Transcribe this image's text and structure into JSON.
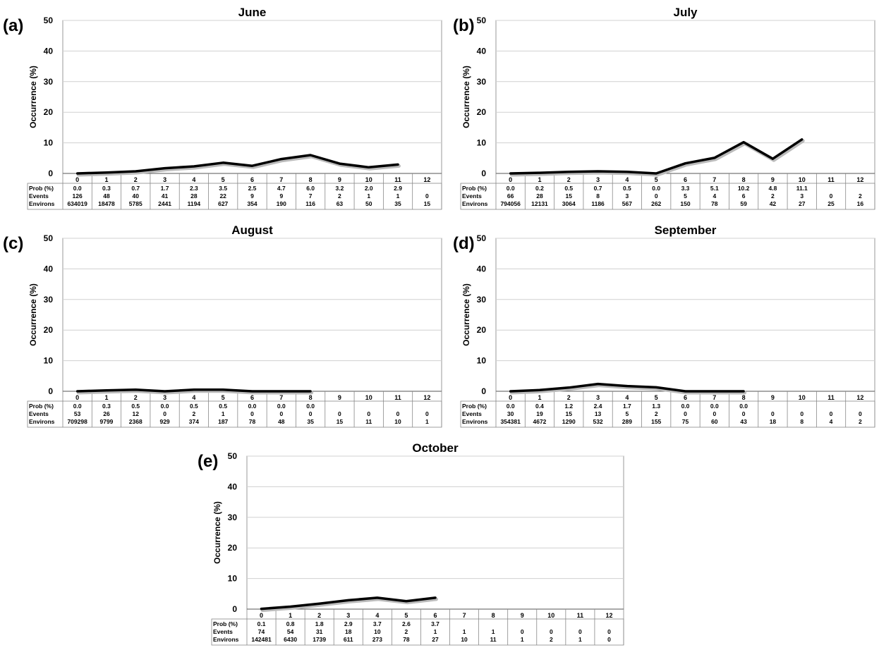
{
  "figure": {
    "y_axis_label": "Occurrence (%)",
    "row_labels": [
      "Prob (%)",
      "Events",
      "Environs"
    ]
  },
  "chart_data": [
    {
      "type": "line",
      "panel_label": "(a)",
      "title": "June",
      "ylabel": "Occurrence (%)",
      "ylim": [
        0,
        50
      ],
      "yticks": [
        0,
        10,
        20,
        30,
        40,
        50
      ],
      "grid": true,
      "categories": [
        "0",
        "1",
        "2",
        "3",
        "4",
        "5",
        "6",
        "7",
        "8",
        "9",
        "10",
        "11",
        "12"
      ],
      "series": [
        {
          "values": [
            0.0,
            0.3,
            0.7,
            1.7,
            2.3,
            3.5,
            2.5,
            4.7,
            6.0,
            3.2,
            2.0,
            2.9,
            null
          ]
        }
      ],
      "table": {
        "prob": [
          "0.0",
          "0.3",
          "0.7",
          "1.7",
          "2.3",
          "3.5",
          "2.5",
          "4.7",
          "6.0",
          "3.2",
          "2.0",
          "2.9",
          ""
        ],
        "events": [
          "126",
          "48",
          "40",
          "41",
          "28",
          "22",
          "9",
          "9",
          "7",
          "2",
          "1",
          "1",
          "0"
        ],
        "environs": [
          "634019",
          "18478",
          "5785",
          "2441",
          "1194",
          "627",
          "354",
          "190",
          "116",
          "63",
          "50",
          "35",
          "15"
        ]
      }
    },
    {
      "type": "line",
      "panel_label": "(b)",
      "title": "July",
      "ylabel": "Occurrence (%)",
      "ylim": [
        0,
        50
      ],
      "yticks": [
        0,
        10,
        20,
        30,
        40,
        50
      ],
      "grid": true,
      "categories": [
        "0",
        "1",
        "2",
        "3",
        "4",
        "5",
        "6",
        "7",
        "8",
        "9",
        "10",
        "11",
        "12"
      ],
      "series": [
        {
          "values": [
            0.0,
            0.2,
            0.5,
            0.7,
            0.5,
            0.0,
            3.3,
            5.1,
            10.2,
            4.8,
            11.1,
            null,
            null
          ]
        }
      ],
      "table": {
        "prob": [
          "0.0",
          "0.2",
          "0.5",
          "0.7",
          "0.5",
          "0.0",
          "3.3",
          "5.1",
          "10.2",
          "4.8",
          "11.1",
          "",
          ""
        ],
        "events": [
          "66",
          "28",
          "15",
          "8",
          "3",
          "0",
          "5",
          "4",
          "6",
          "2",
          "3",
          "0",
          "2"
        ],
        "environs": [
          "794056",
          "12131",
          "3064",
          "1186",
          "567",
          "262",
          "150",
          "78",
          "59",
          "42",
          "27",
          "25",
          "16"
        ]
      }
    },
    {
      "type": "line",
      "panel_label": "(c)",
      "title": "August",
      "ylabel": "Occurrence (%)",
      "ylim": [
        0,
        50
      ],
      "yticks": [
        0,
        10,
        20,
        30,
        40,
        50
      ],
      "grid": true,
      "categories": [
        "0",
        "1",
        "2",
        "3",
        "4",
        "5",
        "6",
        "7",
        "8",
        "9",
        "10",
        "11",
        "12"
      ],
      "series": [
        {
          "values": [
            0.0,
            0.3,
            0.5,
            0.0,
            0.5,
            0.5,
            0.0,
            0.0,
            0.0,
            null,
            null,
            null,
            null
          ]
        }
      ],
      "table": {
        "prob": [
          "0.0",
          "0.3",
          "0.5",
          "0.0",
          "0.5",
          "0.5",
          "0.0",
          "0.0",
          "0.0",
          "",
          "",
          "",
          ""
        ],
        "events": [
          "53",
          "26",
          "12",
          "0",
          "2",
          "1",
          "0",
          "0",
          "0",
          "0",
          "0",
          "0",
          "0"
        ],
        "environs": [
          "709298",
          "9799",
          "2368",
          "929",
          "374",
          "187",
          "78",
          "48",
          "35",
          "15",
          "11",
          "10",
          "1"
        ]
      }
    },
    {
      "type": "line",
      "panel_label": "(d)",
      "title": "September",
      "ylabel": "Occurrence (%)",
      "ylim": [
        0,
        50
      ],
      "yticks": [
        0,
        10,
        20,
        30,
        40,
        50
      ],
      "grid": true,
      "categories": [
        "0",
        "1",
        "2",
        "3",
        "4",
        "5",
        "6",
        "7",
        "8",
        "9",
        "10",
        "11",
        "12"
      ],
      "series": [
        {
          "values": [
            0.0,
            0.4,
            1.2,
            2.4,
            1.7,
            1.3,
            0.0,
            0.0,
            0.0,
            null,
            null,
            null,
            null
          ]
        }
      ],
      "table": {
        "prob": [
          "0.0",
          "0.4",
          "1.2",
          "2.4",
          "1.7",
          "1.3",
          "0.0",
          "0.0",
          "0.0",
          "",
          "",
          "",
          ""
        ],
        "events": [
          "30",
          "19",
          "15",
          "13",
          "5",
          "2",
          "0",
          "0",
          "0",
          "0",
          "0",
          "0",
          "0"
        ],
        "environs": [
          "354381",
          "4672",
          "1290",
          "532",
          "289",
          "155",
          "75",
          "60",
          "43",
          "18",
          "8",
          "4",
          "2"
        ]
      }
    },
    {
      "type": "line",
      "panel_label": "(e)",
      "title": "October",
      "ylabel": "Occurrence (%)",
      "ylim": [
        0,
        50
      ],
      "yticks": [
        0,
        10,
        20,
        30,
        40,
        50
      ],
      "grid": true,
      "categories": [
        "0",
        "1",
        "2",
        "3",
        "4",
        "5",
        "6",
        "7",
        "8",
        "9",
        "10",
        "11",
        "12"
      ],
      "series": [
        {
          "values": [
            0.1,
            0.8,
            1.8,
            2.9,
            3.7,
            2.6,
            3.7,
            null,
            null,
            null,
            null,
            null,
            null
          ]
        }
      ],
      "table": {
        "prob": [
          "0.1",
          "0.8",
          "1.8",
          "2.9",
          "3.7",
          "2.6",
          "3.7",
          "",
          "",
          "",
          "",
          "",
          ""
        ],
        "events": [
          "74",
          "54",
          "31",
          "18",
          "10",
          "2",
          "1",
          "1",
          "1",
          "0",
          "0",
          "0",
          "0"
        ],
        "environs": [
          "142481",
          "6430",
          "1739",
          "611",
          "273",
          "78",
          "27",
          "10",
          "11",
          "1",
          "2",
          "1",
          "0"
        ]
      }
    }
  ]
}
